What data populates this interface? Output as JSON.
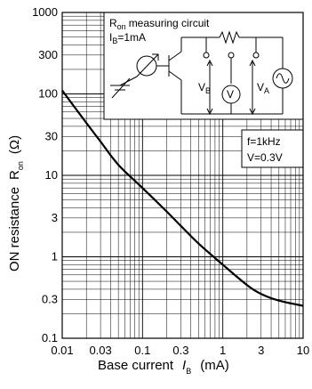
{
  "chart_data": {
    "type": "line",
    "title": "",
    "xlabel": "Base current",
    "xlabel_symbol": "I",
    "xlabel_sub": "B",
    "xlabel_unit": "(mA)",
    "ylabel": "ON resistance",
    "ylabel_symbol": "R",
    "ylabel_sub": "on",
    "ylabel_unit": "(Ω)",
    "x_scale": "log",
    "y_scale": "log",
    "xlim": [
      0.01,
      10
    ],
    "ylim": [
      0.1,
      1000
    ],
    "grid": true,
    "x_tick_labels": [
      "0.01",
      "0.03",
      "0.1",
      "0.3",
      "1",
      "3",
      "10"
    ],
    "x_tick_values": [
      0.01,
      0.03,
      0.1,
      0.3,
      1,
      3,
      10
    ],
    "y_tick_labels": [
      "0.1",
      "0.3",
      "1",
      "3",
      "10",
      "30",
      "100",
      "300",
      "1000"
    ],
    "y_tick_values": [
      0.1,
      0.3,
      1,
      3,
      10,
      30,
      100,
      300,
      1000
    ],
    "series": [
      {
        "x": [
          0.01,
          0.02,
          0.03,
          0.05,
          0.1,
          0.2,
          0.3,
          0.5,
          1,
          2,
          3,
          5,
          10
        ],
        "y": [
          110,
          44,
          26,
          13.5,
          7,
          3.6,
          2.4,
          1.45,
          0.8,
          0.45,
          0.35,
          0.29,
          0.25
        ]
      }
    ],
    "annotations": {
      "circuit_title": "measuring circuit",
      "circuit_title_symbol": "R",
      "circuit_title_sub": "on",
      "circuit_condition": "=1mA",
      "circuit_condition_symbol": "I",
      "circuit_condition_sub": "B",
      "va_label": "V",
      "va_sub": "A",
      "vb_label": "V",
      "vb_sub": "B",
      "meter_label": "V",
      "conditions": [
        "f=1kHz",
        "V=0.3V"
      ]
    },
    "color": "#000000"
  }
}
